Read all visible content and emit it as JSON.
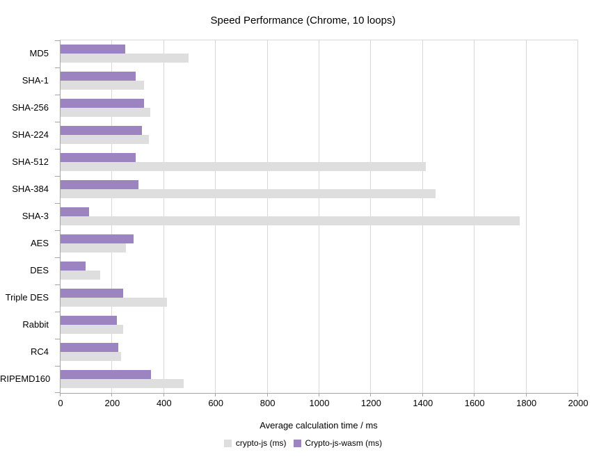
{
  "chart_data": {
    "type": "bar",
    "orientation": "horizontal",
    "title": "Speed Performance (Chrome, 10 loops)",
    "xlabel": "Average calculation time / ms",
    "ylabel": "",
    "xlim": [
      0,
      2000
    ],
    "xticks": [
      0,
      200,
      400,
      600,
      800,
      1000,
      1200,
      1400,
      1600,
      1800,
      2000
    ],
    "grid": "vertical",
    "legend_position": "bottom",
    "categories": [
      "MD5",
      "SHA-1",
      "SHA-256",
      "SHA-224",
      "SHA-512",
      "SHA-384",
      "SHA-3",
      "AES",
      "DES",
      "Triple DES",
      "Rabbit",
      "RC4",
      "RIPEMD160"
    ],
    "series": [
      {
        "name": "crypto-js (ms)",
        "color": "#dedede",
        "values": [
          495,
          322,
          348,
          341,
          1410,
          1450,
          1775,
          253,
          152,
          411,
          241,
          233,
          476
        ]
      },
      {
        "name": "Crypto-js-wasm (ms)",
        "color": "#9c84c0",
        "values": [
          250,
          291,
          323,
          314,
          291,
          302,
          110,
          281,
          98,
          242,
          217,
          223,
          349
        ]
      }
    ],
    "series_draw_order_top_to_bottom": [
      "Crypto-js-wasm (ms)",
      "crypto-js (ms)"
    ],
    "colors": {
      "axis_line": "#a6a6a6",
      "gridline": "#d8d8d8",
      "text": "#000000",
      "background": "#ffffff"
    }
  }
}
